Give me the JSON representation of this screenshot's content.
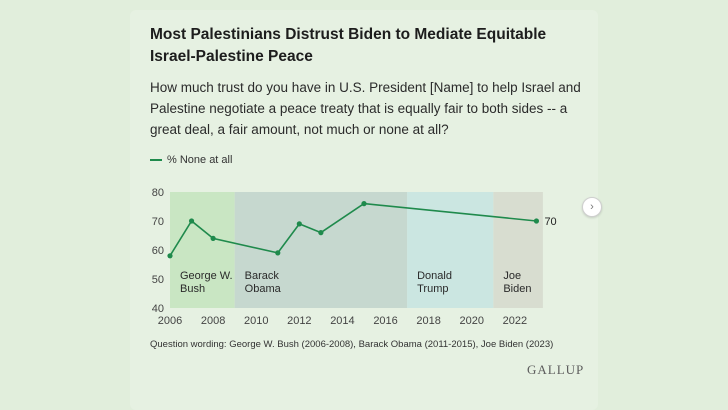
{
  "title": "Most Palestinians Distrust Biden to Mediate Equitable Israel-Palestine Peace",
  "subtitle": "How much trust do you have in U.S. President [Name] to help Israel and Palestine negotiate a peace treaty that is equally fair to both sides -- a great deal, a fair amount, not much or none at all?",
  "note": "Question wording: George W. Bush (2006-2008), Barack Obama (2011-2015), Joe Biden (2023)",
  "brand": "GALLUP",
  "next_icon": "chevron-right-icon",
  "colors": {
    "line": "#1f8a4c",
    "bush": "#c9e6c3",
    "obama": "#c6d8cf",
    "trump": "#cbe6e1",
    "biden": "#d8ddd0"
  },
  "chart_data": {
    "type": "line",
    "xlim": [
      2006,
      2024
    ],
    "ylim": [
      40,
      80
    ],
    "x_ticks": [
      2006,
      2008,
      2010,
      2012,
      2014,
      2016,
      2018,
      2020,
      2022
    ],
    "y_ticks": [
      40,
      50,
      60,
      70,
      80
    ],
    "grid": false,
    "legend": "top-left",
    "series": [
      {
        "name": "% None at all",
        "x": [
          2006,
          2007,
          2008,
          2011,
          2012,
          2013,
          2015,
          2023
        ],
        "y": [
          58,
          70,
          64,
          59,
          69,
          66,
          76,
          70
        ]
      }
    ],
    "end_label": "70",
    "periods": [
      {
        "label_line1": "George W.",
        "label_line2": "Bush",
        "start": 2005.7,
        "end": 2009.0,
        "color_key": "bush"
      },
      {
        "label_line1": "Barack",
        "label_line2": "Obama",
        "start": 2009.0,
        "end": 2017.0,
        "color_key": "obama"
      },
      {
        "label_line1": "Donald",
        "label_line2": "Trump",
        "start": 2017.0,
        "end": 2021.0,
        "color_key": "trump"
      },
      {
        "label_line1": "Joe",
        "label_line2": "Biden",
        "start": 2021.0,
        "end": 2023.3,
        "color_key": "biden"
      }
    ]
  }
}
